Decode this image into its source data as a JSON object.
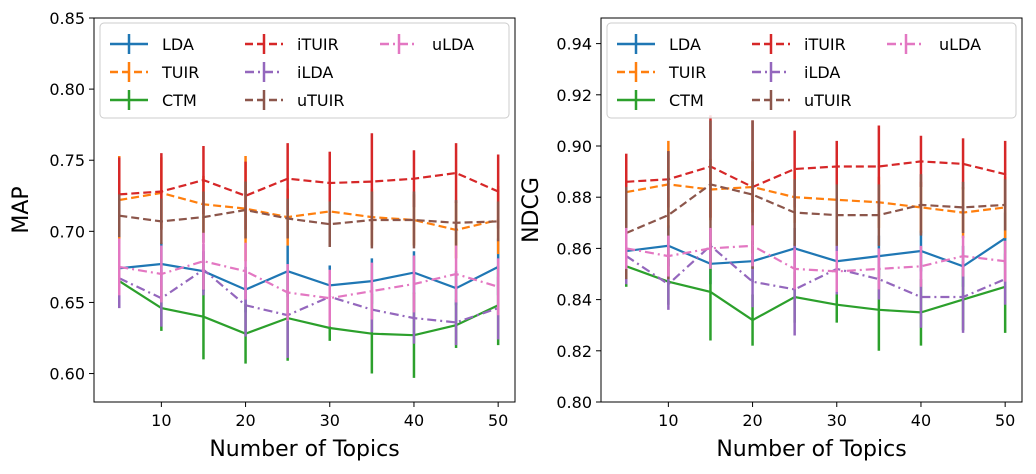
{
  "chart_data": [
    {
      "type": "line",
      "xlabel": "Number of Topics",
      "ylabel": "MAP",
      "xlim": [
        2,
        52
      ],
      "ylim": [
        0.58,
        0.85
      ],
      "xticks": [
        10,
        20,
        30,
        40,
        50
      ],
      "xtick_labels": [
        "10",
        "20",
        "30",
        "40",
        "50"
      ],
      "yticks": [
        0.6,
        0.65,
        0.7,
        0.75,
        0.8,
        0.85
      ],
      "ytick_labels": [
        "0.60",
        "0.65",
        "0.70",
        "0.75",
        "0.80",
        "0.85"
      ],
      "legend_position": "top",
      "legend_columns": 3,
      "grid": false,
      "x": [
        5,
        10,
        15,
        20,
        25,
        30,
        35,
        40,
        45,
        50
      ],
      "series": [
        {
          "name": "LDA",
          "color": "#1f77b4",
          "dash": "solid",
          "values": [
            0.674,
            0.677,
            0.672,
            0.659,
            0.672,
            0.662,
            0.665,
            0.671,
            0.66,
            0.675
          ],
          "err": [
            0.02,
            0.015,
            0.014,
            0.016,
            0.018,
            0.014,
            0.016,
            0.015,
            0.012,
            0.02
          ]
        },
        {
          "name": "TUIR",
          "color": "#ff7f0e",
          "dash": "dashed",
          "values": [
            0.722,
            0.727,
            0.719,
            0.716,
            0.71,
            0.714,
            0.71,
            0.708,
            0.701,
            0.708
          ],
          "err": [
            0.031,
            0.025,
            0.02,
            0.037,
            0.02,
            0.018,
            0.02,
            0.018,
            0.02,
            0.024
          ]
        },
        {
          "name": "CTM",
          "color": "#2ca02c",
          "dash": "solid",
          "values": [
            0.665,
            0.646,
            0.64,
            0.628,
            0.639,
            0.632,
            0.628,
            0.627,
            0.634,
            0.648
          ],
          "err": [
            0.018,
            0.016,
            0.03,
            0.021,
            0.03,
            0.009,
            0.028,
            0.03,
            0.016,
            0.028
          ]
        },
        {
          "name": "iTUIR",
          "color": "#d62728",
          "dash": "dashed",
          "values": [
            0.726,
            0.728,
            0.736,
            0.725,
            0.737,
            0.734,
            0.735,
            0.737,
            0.741,
            0.728
          ],
          "err": [
            0.026,
            0.027,
            0.024,
            0.024,
            0.025,
            0.022,
            0.034,
            0.02,
            0.021,
            0.026
          ]
        },
        {
          "name": "iLDA",
          "color": "#9467bd",
          "dash": "dashdot",
          "values": [
            0.667,
            0.653,
            0.673,
            0.648,
            0.641,
            0.654,
            0.645,
            0.639,
            0.636,
            0.646
          ],
          "err": [
            0.021,
            0.02,
            0.018,
            0.022,
            0.03,
            0.014,
            0.016,
            0.018,
            0.016,
            0.022
          ]
        },
        {
          "name": "uTUIR",
          "color": "#8c564b",
          "dash": "dashed",
          "values": [
            0.711,
            0.707,
            0.71,
            0.715,
            0.709,
            0.705,
            0.708,
            0.708,
            0.706,
            0.707
          ],
          "err": [
            0.015,
            0.016,
            0.018,
            0.02,
            0.014,
            0.016,
            0.02,
            0.02,
            0.016,
            0.014
          ]
        },
        {
          "name": "uLDA",
          "color": "#e377c2",
          "dash": "dashdot",
          "values": [
            0.675,
            0.67,
            0.679,
            0.672,
            0.657,
            0.653,
            0.658,
            0.663,
            0.67,
            0.661
          ],
          "err": [
            0.02,
            0.02,
            0.02,
            0.02,
            0.02,
            0.02,
            0.02,
            0.02,
            0.02,
            0.02
          ]
        }
      ]
    },
    {
      "type": "line",
      "xlabel": "Number of Topics",
      "ylabel": "NDCG",
      "xlim": [
        2,
        52
      ],
      "ylim": [
        0.8,
        0.95
      ],
      "xticks": [
        10,
        20,
        30,
        40,
        50
      ],
      "xtick_labels": [
        "10",
        "20",
        "30",
        "40",
        "50"
      ],
      "yticks": [
        0.8,
        0.82,
        0.84,
        0.86,
        0.88,
        0.9,
        0.92,
        0.94
      ],
      "ytick_labels": [
        "0.80",
        "0.82",
        "0.84",
        "0.86",
        "0.88",
        "0.90",
        "0.92",
        "0.94"
      ],
      "legend_position": "top",
      "legend_columns": 3,
      "grid": false,
      "x": [
        5,
        10,
        15,
        20,
        25,
        30,
        35,
        40,
        45,
        50
      ],
      "series": [
        {
          "name": "LDA",
          "color": "#1f77b4",
          "dash": "solid",
          "values": [
            0.859,
            0.861,
            0.854,
            0.855,
            0.86,
            0.855,
            0.857,
            0.859,
            0.853,
            0.864
          ],
          "err": [
            0.008,
            0.008,
            0.008,
            0.008,
            0.008,
            0.008,
            0.008,
            0.008,
            0.008,
            0.01
          ]
        },
        {
          "name": "TUIR",
          "color": "#ff7f0e",
          "dash": "dashed",
          "values": [
            0.882,
            0.885,
            0.883,
            0.884,
            0.88,
            0.879,
            0.878,
            0.876,
            0.874,
            0.876
          ],
          "err": [
            0.012,
            0.017,
            0.012,
            0.01,
            0.01,
            0.01,
            0.01,
            0.01,
            0.01,
            0.012
          ]
        },
        {
          "name": "CTM",
          "color": "#2ca02c",
          "dash": "solid",
          "values": [
            0.853,
            0.847,
            0.843,
            0.832,
            0.841,
            0.838,
            0.836,
            0.835,
            0.84,
            0.845
          ],
          "err": [
            0.008,
            0.009,
            0.019,
            0.01,
            0.01,
            0.007,
            0.016,
            0.013,
            0.012,
            0.018
          ]
        },
        {
          "name": "iTUIR",
          "color": "#d62728",
          "dash": "dashed",
          "values": [
            0.886,
            0.887,
            0.892,
            0.884,
            0.891,
            0.892,
            0.892,
            0.894,
            0.893,
            0.889
          ],
          "err": [
            0.011,
            0.011,
            0.02,
            0.026,
            0.015,
            0.01,
            0.016,
            0.01,
            0.01,
            0.013
          ]
        },
        {
          "name": "iLDA",
          "color": "#9467bd",
          "dash": "dashdot",
          "values": [
            0.857,
            0.846,
            0.861,
            0.847,
            0.844,
            0.852,
            0.848,
            0.841,
            0.841,
            0.848
          ],
          "err": [
            0.011,
            0.01,
            0.007,
            0.01,
            0.018,
            0.01,
            0.008,
            0.012,
            0.014,
            0.01
          ]
        },
        {
          "name": "uTUIR",
          "color": "#8c564b",
          "dash": "dashed",
          "values": [
            0.866,
            0.873,
            0.885,
            0.881,
            0.874,
            0.873,
            0.873,
            0.877,
            0.876,
            0.877
          ],
          "err": [
            0.018,
            0.025,
            0.025,
            0.029,
            0.013,
            0.012,
            0.012,
            0.012,
            0.01,
            0.01
          ]
        },
        {
          "name": "uLDA",
          "color": "#e377c2",
          "dash": "dashdot",
          "values": [
            0.86,
            0.857,
            0.86,
            0.861,
            0.852,
            0.851,
            0.852,
            0.853,
            0.857,
            0.855
          ],
          "err": [
            0.008,
            0.008,
            0.008,
            0.008,
            0.008,
            0.008,
            0.008,
            0.008,
            0.008,
            0.008
          ]
        }
      ]
    }
  ]
}
